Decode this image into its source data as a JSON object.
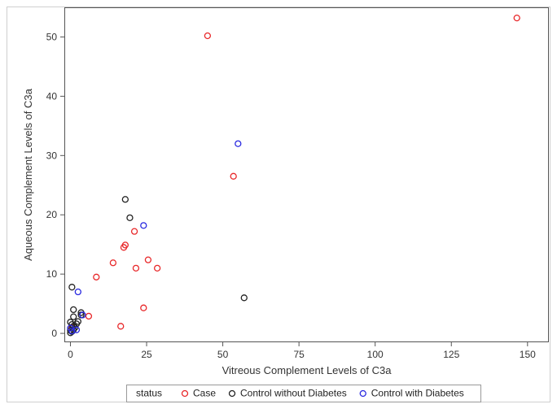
{
  "chart_data": {
    "type": "scatter",
    "xlabel": "Vitreous Complement Levels of C3a",
    "ylabel": "Aqueous Complement Levels of C3a",
    "xlim": [
      -2,
      157
    ],
    "ylim": [
      -1.5,
      55
    ],
    "xticks": [
      0,
      25,
      50,
      75,
      100,
      125,
      150
    ],
    "yticks": [
      0,
      10,
      20,
      30,
      40,
      50
    ],
    "grid": false,
    "legend_title": "status",
    "legend_position": "bottom",
    "series": [
      {
        "name": "Case",
        "color": "#e8282a",
        "points": [
          [
            146.5,
            53.2
          ],
          [
            45,
            50.2
          ],
          [
            53.5,
            26.5
          ],
          [
            21,
            17.2
          ],
          [
            18,
            14.9
          ],
          [
            17.5,
            14.5
          ],
          [
            14,
            11.9
          ],
          [
            25.5,
            12.4
          ],
          [
            21.5,
            11.0
          ],
          [
            28.5,
            11.0
          ],
          [
            8.5,
            9.5
          ],
          [
            24,
            4.3
          ],
          [
            6,
            2.9
          ],
          [
            16.5,
            1.2
          ],
          [
            0.5,
            1.0
          ]
        ]
      },
      {
        "name": "Control without Diabetes",
        "color": "#222222",
        "points": [
          [
            18,
            22.6
          ],
          [
            19.5,
            19.5
          ],
          [
            0.5,
            7.8
          ],
          [
            57,
            6.0
          ],
          [
            1,
            4.0
          ],
          [
            3.5,
            3.5
          ],
          [
            3.5,
            3.1
          ],
          [
            1,
            2.8
          ],
          [
            2.5,
            2.0
          ],
          [
            2,
            1.6
          ],
          [
            0,
            1.9
          ],
          [
            0.5,
            1.5
          ],
          [
            1,
            1.2
          ],
          [
            1.5,
            1.0
          ],
          [
            0,
            0.5
          ],
          [
            0.5,
            0.3
          ],
          [
            1,
            0.6
          ],
          [
            0,
            0.1
          ]
        ]
      },
      {
        "name": "Control with Diabetes",
        "color": "#2a2ae0",
        "points": [
          [
            55,
            32.0
          ],
          [
            24,
            18.2
          ],
          [
            2.5,
            7.0
          ],
          [
            4,
            3.1
          ],
          [
            2,
            0.6
          ],
          [
            0,
            0.9
          ],
          [
            0.5,
            0.4
          ]
        ]
      }
    ]
  }
}
